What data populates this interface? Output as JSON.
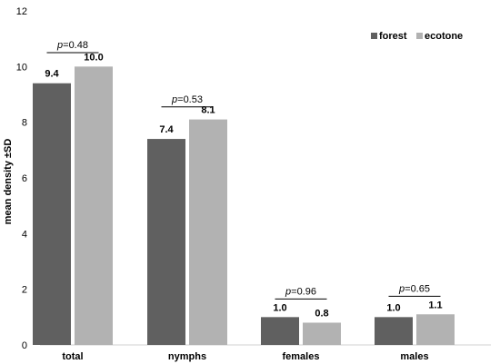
{
  "chart_data": {
    "type": "bar",
    "categories": [
      "total",
      "nymphs",
      "females",
      "males"
    ],
    "series": [
      {
        "name": "forest",
        "color": "#606060",
        "values": [
          9.4,
          7.4,
          1.0,
          1.0
        ],
        "labels": [
          "9.4",
          "7.4",
          "1.0",
          "1.0"
        ]
      },
      {
        "name": "ecotone",
        "color": "#b2b2b2",
        "values": [
          10.0,
          8.1,
          0.8,
          1.1
        ],
        "labels": [
          "10.0",
          "8.1",
          "0.8",
          "1.1"
        ]
      }
    ],
    "ylabel": "mean density  ±SD",
    "xlabel": "",
    "ylim": [
      0,
      12
    ],
    "yticks": [
      0,
      2,
      4,
      6,
      8,
      10,
      12
    ],
    "grid": false,
    "legend": "top-right",
    "annotations": [
      {
        "italic": "p",
        "rest": "=0.48",
        "category": "total"
      },
      {
        "italic": "p",
        "rest": "=0.53",
        "category": "nymphs"
      },
      {
        "italic": "p",
        "rest": "=0.96",
        "category": "females"
      },
      {
        "italic": "p",
        "rest": "=0.65",
        "category": "males"
      }
    ]
  }
}
